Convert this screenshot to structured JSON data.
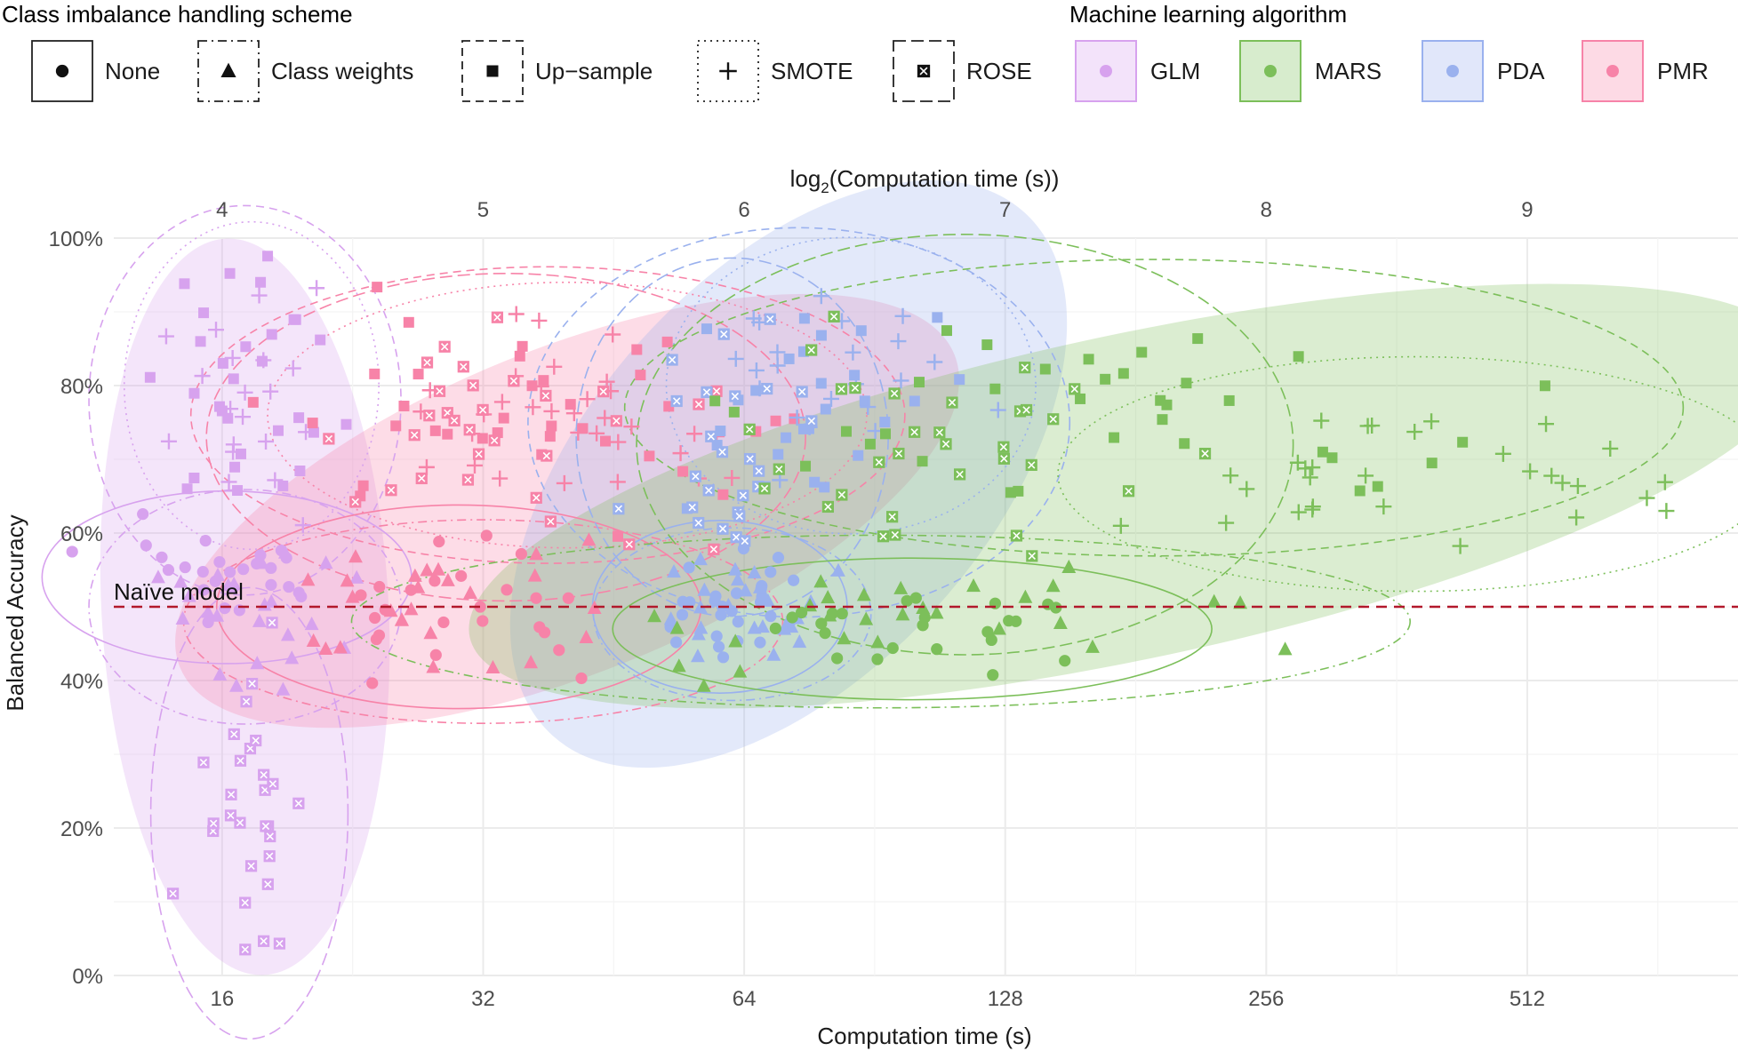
{
  "chart_data": {
    "type": "scatter",
    "title": "",
    "xlabel": "Computation time (s)",
    "ylabel": "Balanced Accuracy",
    "secondary_xlabel": "log",
    "secondary_xlabel_sub": "2",
    "secondary_xlabel_tail": "(Computation time (s))",
    "x_scale": "log2",
    "xlim": [
      12,
      896
    ],
    "ylim": [
      0,
      100
    ],
    "x_ticks": [
      16,
      32,
      64,
      128,
      256,
      512
    ],
    "x_tick_labels": [
      "16",
      "32",
      "64",
      "128",
      "256",
      "512"
    ],
    "top_ticks": [
      4,
      5,
      6,
      7,
      8,
      9
    ],
    "top_tick_labels": [
      "4",
      "5",
      "6",
      "7",
      "8",
      "9"
    ],
    "y_ticks": [
      0,
      20,
      40,
      60,
      80,
      100
    ],
    "y_tick_labels": [
      "0%",
      "20%",
      "40%",
      "60%",
      "80%",
      "100%"
    ],
    "grid": true,
    "reference_line": {
      "y": 50,
      "label": "Naïve model",
      "color": "#b2182b"
    },
    "legend": {
      "placement": "top",
      "shape_title": "Class imbalance handling scheme",
      "color_title": "Machine learning algorithm",
      "shapes": [
        {
          "key": "none",
          "label": "None",
          "marker": "circle",
          "dash": "solid"
        },
        {
          "key": "cw",
          "label": "Class weights",
          "marker": "triangle",
          "dash": "dashdot"
        },
        {
          "key": "up",
          "label": "Up−sample",
          "marker": "square",
          "dash": "dashed"
        },
        {
          "key": "smote",
          "label": "SMOTE",
          "marker": "plus",
          "dash": "dotted"
        },
        {
          "key": "rose",
          "label": "ROSE",
          "marker": "boxx",
          "dash": "longdash"
        }
      ],
      "colors": [
        {
          "key": "glm",
          "label": "GLM",
          "color": "#d7a2ee"
        },
        {
          "key": "mars",
          "label": "MARS",
          "color": "#7cbf5a"
        },
        {
          "key": "pda",
          "label": "PDA",
          "color": "#9ab1ee"
        },
        {
          "key": "pmr",
          "label": "PMR",
          "color": "#f783a8"
        }
      ]
    },
    "algorithm_regions": [
      {
        "algorithm": "glm",
        "center": [
          17.0,
          50
        ],
        "log2_halfwidth": 0.55,
        "y_halfwidth": 50
      },
      {
        "algorithm": "pmr",
        "center": [
          40.0,
          63
        ],
        "log2_halfwidth": 1.6,
        "y_halfwidth": 22
      },
      {
        "algorithm": "pda",
        "center": [
          72.0,
          68
        ],
        "log2_halfwidth": 1.35,
        "y_halfwidth": 27
      },
      {
        "algorithm": "mars",
        "center": [
          180.0,
          65
        ],
        "log2_halfwidth": 2.6,
        "y_halfwidth": 22
      }
    ],
    "groups": [
      {
        "algorithm": "glm",
        "scheme": "none",
        "n": 26,
        "center": [
          16.2,
          54
        ],
        "x_log2_spread": 0.3,
        "y_spread": 5
      },
      {
        "algorithm": "glm",
        "scheme": "cw",
        "n": 24,
        "center": [
          17.0,
          50
        ],
        "x_log2_spread": 0.25,
        "y_spread": 7
      },
      {
        "algorithm": "glm",
        "scheme": "up",
        "n": 30,
        "center": [
          17.0,
          78
        ],
        "x_log2_spread": 0.25,
        "y_spread": 12
      },
      {
        "algorithm": "glm",
        "scheme": "smote",
        "n": 20,
        "center": [
          17.3,
          80
        ],
        "x_log2_spread": 0.2,
        "y_spread": 10
      },
      {
        "algorithm": "glm",
        "scheme": "rose",
        "n": 28,
        "center": [
          17.2,
          22
        ],
        "x_log2_spread": 0.15,
        "y_spread": 14
      },
      {
        "algorithm": "pmr",
        "scheme": "none",
        "n": 24,
        "center": [
          30.0,
          50
        ],
        "x_log2_spread": 0.4,
        "y_spread": 6
      },
      {
        "algorithm": "pmr",
        "scheme": "cw",
        "n": 26,
        "center": [
          32.0,
          48
        ],
        "x_log2_spread": 0.5,
        "y_spread": 6
      },
      {
        "algorithm": "pmr",
        "scheme": "up",
        "n": 36,
        "center": [
          38.0,
          76
        ],
        "x_log2_spread": 0.6,
        "y_spread": 9
      },
      {
        "algorithm": "pmr",
        "scheme": "smote",
        "n": 32,
        "center": [
          40.0,
          76
        ],
        "x_log2_spread": 0.5,
        "y_spread": 8
      },
      {
        "algorithm": "pmr",
        "scheme": "rose",
        "n": 30,
        "center": [
          34.0,
          73
        ],
        "x_log2_spread": 0.5,
        "y_spread": 10
      },
      {
        "algorithm": "pda",
        "scheme": "none",
        "n": 28,
        "center": [
          60.0,
          50
        ],
        "x_log2_spread": 0.2,
        "y_spread": 5
      },
      {
        "algorithm": "pda",
        "scheme": "cw",
        "n": 24,
        "center": [
          62.0,
          49
        ],
        "x_log2_spread": 0.22,
        "y_spread": 5
      },
      {
        "algorithm": "pda",
        "scheme": "up",
        "n": 26,
        "center": [
          74.0,
          75
        ],
        "x_log2_spread": 0.45,
        "y_spread": 12
      },
      {
        "algorithm": "pda",
        "scheme": "smote",
        "n": 22,
        "center": [
          85.0,
          80
        ],
        "x_log2_spread": 0.3,
        "y_spread": 9
      },
      {
        "algorithm": "pda",
        "scheme": "rose",
        "n": 26,
        "center": [
          62.0,
          73
        ],
        "x_log2_spread": 0.25,
        "y_spread": 11
      },
      {
        "algorithm": "mars",
        "scheme": "none",
        "n": 24,
        "center": [
          100.0,
          47
        ],
        "x_log2_spread": 0.5,
        "y_spread": 4
      },
      {
        "algorithm": "mars",
        "scheme": "cw",
        "n": 28,
        "center": [
          92.0,
          48
        ],
        "x_log2_spread": 0.9,
        "y_spread": 5
      },
      {
        "algorithm": "mars",
        "scheme": "up",
        "n": 36,
        "center": [
          190.0,
          77
        ],
        "x_log2_spread": 0.9,
        "y_spread": 9
      },
      {
        "algorithm": "mars",
        "scheme": "smote",
        "n": 30,
        "center": [
          380.0,
          68
        ],
        "x_log2_spread": 0.6,
        "y_spread": 7
      },
      {
        "algorithm": "mars",
        "scheme": "rose",
        "n": 32,
        "center": [
          115.0,
          72
        ],
        "x_log2_spread": 0.55,
        "y_spread": 13
      }
    ]
  }
}
